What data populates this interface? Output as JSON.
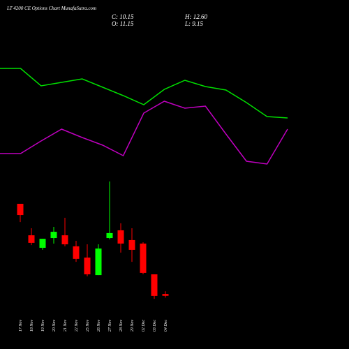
{
  "chart_data": [
    {
      "type": "line",
      "x": [
        0,
        1,
        2,
        3,
        4,
        5,
        6,
        7,
        8,
        9,
        10,
        11,
        12,
        13,
        14
      ],
      "xlim": [
        0,
        14
      ],
      "ylim": [
        0,
        200
      ],
      "series": [
        {
          "color": "#00e000",
          "values": [
            142,
            142,
            117,
            122,
            127,
            115,
            103,
            90,
            112,
            125,
            116,
            111,
            93,
            73,
            71
          ]
        },
        {
          "color": "#c000c0",
          "values": [
            20,
            20,
            38,
            55,
            43,
            32,
            17,
            78,
            95,
            85,
            88,
            48,
            9,
            5,
            55
          ]
        }
      ]
    },
    {
      "type": "candlestick",
      "title": "LT 4200 CE Options Chart MunafaSutra.com",
      "legend_texts": [
        "C: 10.15",
        "H: 12.60",
        "O: 11.15",
        "L: 9.15"
      ],
      "categories": [
        "17 Nov",
        "18 Nov",
        "19 Nov",
        "20 Nov",
        "21 Nov",
        "22 Nov",
        "25 Nov",
        "26 Nov",
        "27 Nov",
        "28 Nov",
        "29 Nov",
        "02 Dec",
        "03 Dec",
        "04 Dec"
      ],
      "open": [
        60.1,
        43.0,
        36.2,
        41.5,
        43.0,
        37.0,
        30.9,
        21.4,
        41.5,
        45.7,
        40.4,
        38.5,
        21.8,
        11.15
      ],
      "high": [
        60.1,
        46.8,
        41.1,
        47.6,
        52.5,
        40.0,
        38.1,
        38.1,
        72.2,
        49.5,
        46.8,
        39.2,
        21.8,
        12.6
      ],
      "low": [
        50.2,
        37.7,
        35.1,
        38.5,
        37.0,
        28.6,
        20.7,
        21.4,
        40.8,
        33.6,
        28.6,
        21.8,
        8.5,
        9.15
      ],
      "close": [
        54.0,
        38.9,
        41.1,
        44.9,
        38.1,
        30.2,
        21.8,
        35.8,
        44.2,
        38.5,
        35.1,
        22.6,
        10.1,
        10.15
      ],
      "ylim": [
        4,
        76
      ],
      "up_color": "#00ff00",
      "down_color": "#ff0000"
    }
  ]
}
